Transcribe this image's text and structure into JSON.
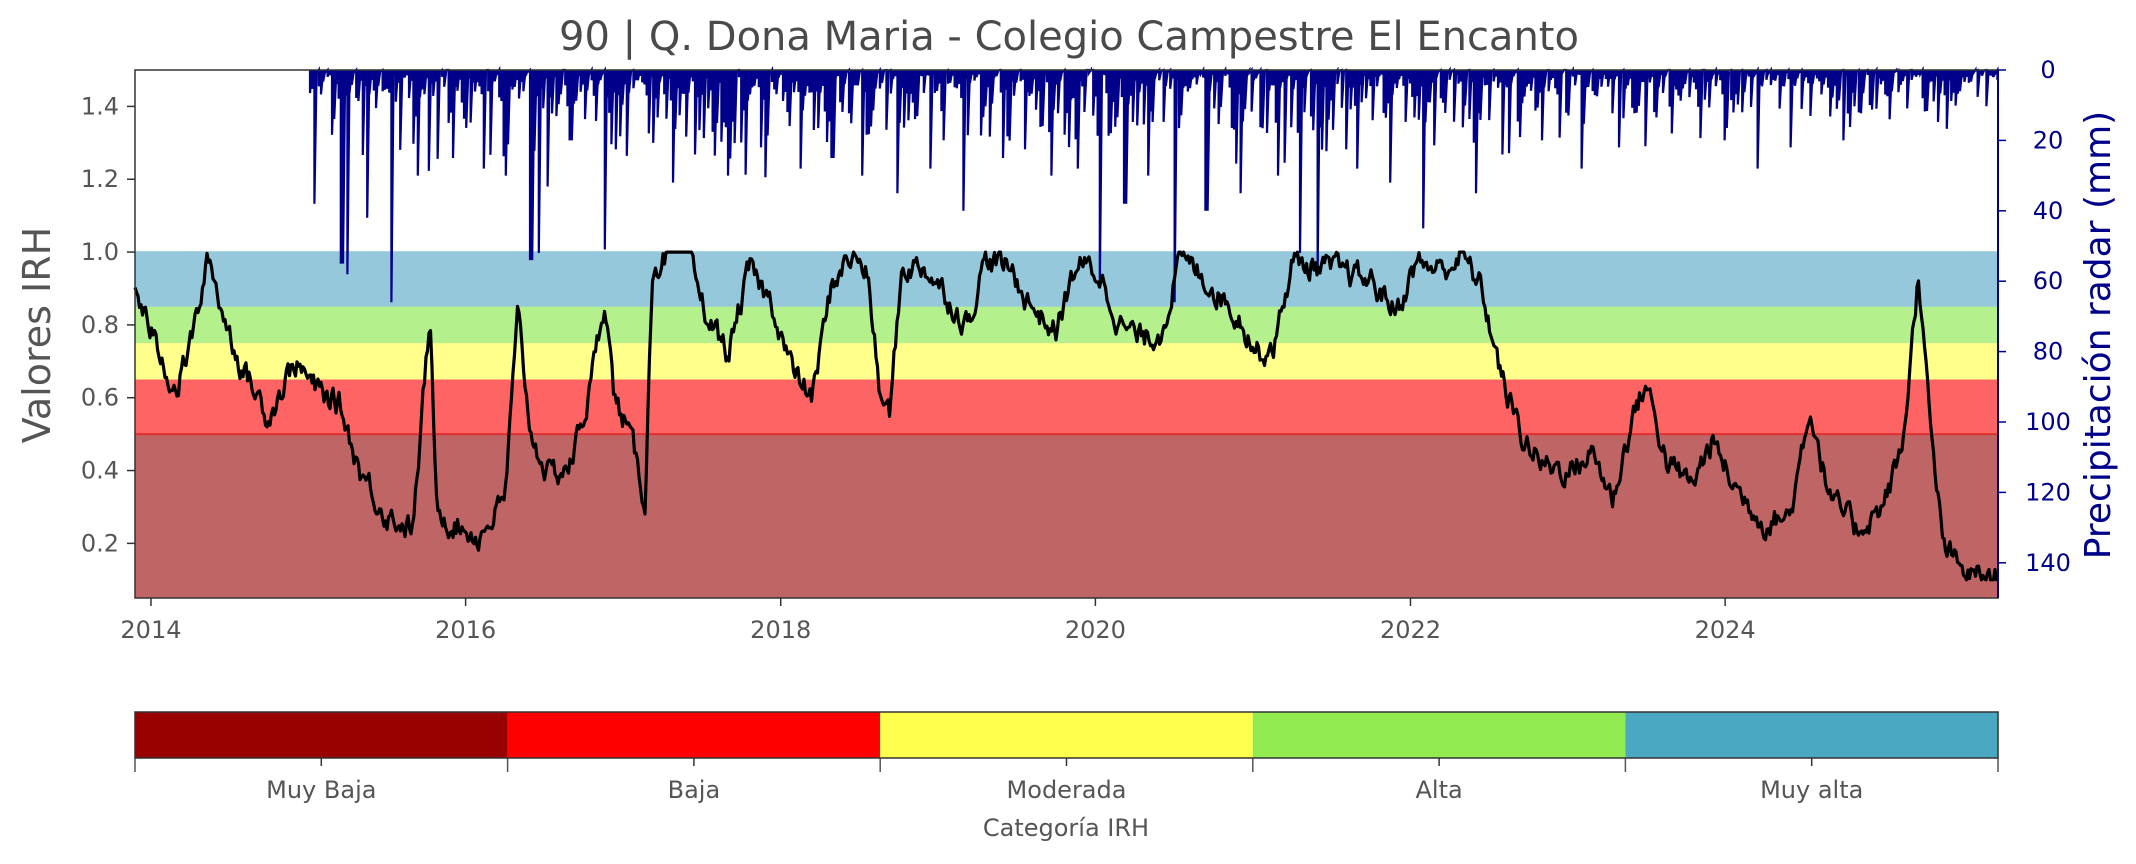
{
  "chart_data": [
    {
      "type": "line",
      "title": "90 | Q. Dona Maria - Colegio Campestre El Encanto",
      "ylabel": "Valores IRH",
      "y2label": "Precipitación radar (mm)",
      "xlim": [
        "2013-11-25",
        "2025-09-25"
      ],
      "ylim": [
        0.05,
        1.5
      ],
      "y2lim": [
        150,
        0
      ],
      "y2_inverted": true,
      "x_ticks": [
        "2014",
        "2016",
        "2018",
        "2020",
        "2022",
        "2024"
      ],
      "y_ticks": [
        "0.2",
        "0.4",
        "0.6",
        "0.8",
        "1.0",
        "1.2",
        "1.4"
      ],
      "y2_ticks": [
        "0",
        "20",
        "40",
        "60",
        "80",
        "100",
        "120",
        "140"
      ],
      "grid": false,
      "bands": [
        {
          "category": "Muy Baja",
          "from": 0.05,
          "to": 0.5,
          "color": "#c06565"
        },
        {
          "category": "Baja",
          "from": 0.5,
          "to": 0.65,
          "color": "#ff6464"
        },
        {
          "category": "Moderada",
          "from": 0.65,
          "to": 0.75,
          "color": "#ffff8c"
        },
        {
          "category": "Alta",
          "from": 0.75,
          "to": 0.85,
          "color": "#b4f08c"
        },
        {
          "category": "Muy alta",
          "from": 0.85,
          "to": 1.0,
          "color": "#96c8dc"
        }
      ],
      "reference_line": {
        "y": 0.5,
        "color": "#e03030"
      },
      "series": [
        {
          "axis": "left",
          "color": "#000000",
          "points": [
            [
              "2013-11-25",
              0.9
            ],
            [
              "2014-01-15",
              0.74
            ],
            [
              "2014-03-01",
              0.62
            ],
            [
              "2014-04-10",
              0.78
            ],
            [
              "2014-05-15",
              0.98
            ],
            [
              "2014-06-20",
              0.82
            ],
            [
              "2014-08-01",
              0.68
            ],
            [
              "2014-10-01",
              0.55
            ],
            [
              "2014-12-01",
              0.7
            ],
            [
              "2015-01-20",
              0.62
            ],
            [
              "2015-03-15",
              0.58
            ],
            [
              "2015-05-01",
              0.4
            ],
            [
              "2015-07-01",
              0.28
            ],
            [
              "2015-09-01",
              0.24
            ],
            [
              "2015-10-10",
              0.82
            ],
            [
              "2015-10-25",
              0.3
            ],
            [
              "2015-12-01",
              0.26
            ],
            [
              "2016-02-01",
              0.22
            ],
            [
              "2016-04-01",
              0.32
            ],
            [
              "2016-05-01",
              0.82
            ],
            [
              "2016-06-01",
              0.5
            ],
            [
              "2016-07-15",
              0.38
            ],
            [
              "2016-09-01",
              0.42
            ],
            [
              "2016-10-15",
              0.62
            ],
            [
              "2016-11-20",
              0.88
            ],
            [
              "2016-12-10",
              0.6
            ],
            [
              "2017-01-10",
              0.52
            ],
            [
              "2017-02-20",
              0.32
            ],
            [
              "2017-03-10",
              0.96
            ],
            [
              "2017-04-15",
              0.99
            ],
            [
              "2017-06-01",
              0.98
            ],
            [
              "2017-07-15",
              0.82
            ],
            [
              "2017-09-01",
              0.72
            ],
            [
              "2017-10-20",
              0.95
            ],
            [
              "2017-12-15",
              0.85
            ],
            [
              "2018-02-01",
              0.66
            ],
            [
              "2018-03-15",
              0.6
            ],
            [
              "2018-05-01",
              0.92
            ],
            [
              "2018-06-15",
              0.99
            ],
            [
              "2018-07-20",
              0.95
            ],
            [
              "2018-08-20",
              0.6
            ],
            [
              "2018-09-10",
              0.55
            ],
            [
              "2018-10-10",
              0.96
            ],
            [
              "2018-12-01",
              0.96
            ],
            [
              "2019-01-20",
              0.88
            ],
            [
              "2019-03-10",
              0.8
            ],
            [
              "2019-04-20",
              0.98
            ],
            [
              "2019-06-20",
              0.95
            ],
            [
              "2019-08-01",
              0.86
            ],
            [
              "2019-10-01",
              0.78
            ],
            [
              "2019-11-20",
              0.97
            ],
            [
              "2020-01-10",
              0.94
            ],
            [
              "2020-03-01",
              0.8
            ],
            [
              "2020-04-15",
              0.76
            ],
            [
              "2020-06-01",
              0.78
            ],
            [
              "2020-07-15",
              0.98
            ],
            [
              "2020-09-01",
              0.94
            ],
            [
              "2020-10-20",
              0.88
            ],
            [
              "2020-12-01",
              0.82
            ],
            [
              "2021-01-15",
              0.72
            ],
            [
              "2021-02-20",
              0.75
            ],
            [
              "2021-04-01",
              0.97
            ],
            [
              "2021-06-01",
              0.96
            ],
            [
              "2021-08-01",
              0.94
            ],
            [
              "2021-10-01",
              0.92
            ],
            [
              "2021-12-01",
              0.84
            ],
            [
              "2022-01-15",
              0.97
            ],
            [
              "2022-03-15",
              0.95
            ],
            [
              "2022-05-01",
              0.99
            ],
            [
              "2022-06-15",
              0.9
            ],
            [
              "2022-08-01",
              0.65
            ],
            [
              "2022-09-15",
              0.5
            ],
            [
              "2022-11-01",
              0.42
            ],
            [
              "2023-01-01",
              0.4
            ],
            [
              "2023-03-01",
              0.45
            ],
            [
              "2023-04-15",
              0.32
            ],
            [
              "2023-06-01",
              0.55
            ],
            [
              "2023-07-01",
              0.64
            ],
            [
              "2023-08-20",
              0.42
            ],
            [
              "2023-10-15",
              0.36
            ],
            [
              "2023-12-01",
              0.48
            ],
            [
              "2024-02-01",
              0.34
            ],
            [
              "2024-04-01",
              0.26
            ],
            [
              "2024-06-01",
              0.28
            ],
            [
              "2024-07-15",
              0.58
            ],
            [
              "2024-09-01",
              0.32
            ],
            [
              "2024-11-01",
              0.24
            ],
            [
              "2025-01-01",
              0.3
            ],
            [
              "2025-02-15",
              0.46
            ],
            [
              "2025-03-25",
              0.95
            ],
            [
              "2025-04-20",
              0.52
            ],
            [
              "2025-05-20",
              0.2
            ],
            [
              "2025-07-01",
              0.12
            ],
            [
              "2025-09-25",
              0.1
            ]
          ]
        },
        {
          "axis": "right",
          "color": "#00008b",
          "start": "2015-01-05",
          "end": "2025-09-25",
          "events": [
            [
              "2015-01-15",
              38
            ],
            [
              "2015-03-20",
              55
            ],
            [
              "2015-04-01",
              58
            ],
            [
              "2015-05-20",
              42
            ],
            [
              "2015-07-15",
              66
            ],
            [
              "2015-09-10",
              30
            ],
            [
              "2015-12-01",
              25
            ],
            [
              "2016-02-10",
              28
            ],
            [
              "2016-04-05",
              30
            ],
            [
              "2016-06-01",
              54
            ],
            [
              "2016-06-20",
              52
            ],
            [
              "2016-09-01",
              20
            ],
            [
              "2016-11-20",
              51
            ],
            [
              "2017-03-01",
              18
            ],
            [
              "2017-06-15",
              24
            ],
            [
              "2017-09-01",
              30
            ],
            [
              "2017-11-15",
              22
            ],
            [
              "2018-02-15",
              28
            ],
            [
              "2018-05-01",
              25
            ],
            [
              "2018-07-10",
              30
            ],
            [
              "2018-10-01",
              35
            ],
            [
              "2018-12-15",
              28
            ],
            [
              "2019-03-01",
              40
            ],
            [
              "2019-06-01",
              25
            ],
            [
              "2019-09-20",
              30
            ],
            [
              "2019-11-20",
              28
            ],
            [
              "2020-01-10",
              62
            ],
            [
              "2020-03-10",
              38
            ],
            [
              "2020-05-01",
              30
            ],
            [
              "2020-07-01",
              66
            ],
            [
              "2020-09-15",
              40
            ],
            [
              "2020-12-01",
              35
            ],
            [
              "2021-03-01",
              30
            ],
            [
              "2021-06-01",
              58
            ],
            [
              "2021-04-20",
              52
            ],
            [
              "2021-09-01",
              28
            ],
            [
              "2021-11-15",
              32
            ],
            [
              "2022-02-01",
              45
            ],
            [
              "2022-06-01",
              35
            ],
            [
              "2022-08-01",
              24
            ],
            [
              "2022-11-01",
              20
            ],
            [
              "2023-02-01",
              28
            ],
            [
              "2023-05-01",
              22
            ],
            [
              "2023-09-01",
              18
            ],
            [
              "2024-01-01",
              20
            ],
            [
              "2024-03-15",
              28
            ],
            [
              "2024-06-01",
              22
            ],
            [
              "2024-10-01",
              20
            ],
            [
              "2025-01-15",
              14
            ],
            [
              "2025-04-01",
              8
            ],
            [
              "2025-07-01",
              6
            ]
          ]
        }
      ]
    },
    {
      "type": "colorbar",
      "xlabel": "Categoría IRH",
      "categories": [
        "Muy Baja",
        "Baja",
        "Moderada",
        "Alta",
        "Muy alta"
      ],
      "colors": [
        "#990000",
        "#ff0000",
        "#ffff4d",
        "#91eb50",
        "#4ba8c3"
      ]
    }
  ]
}
